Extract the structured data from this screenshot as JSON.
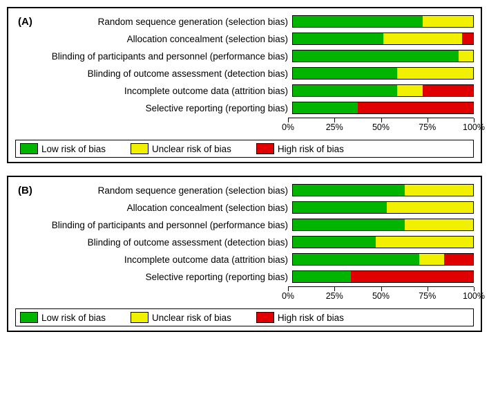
{
  "colors": {
    "low": "#00b400",
    "unclear": "#f0f000",
    "high": "#e00000",
    "border": "#000000",
    "background": "#ffffff"
  },
  "axis": {
    "ticks": [
      0,
      25,
      50,
      75,
      100
    ],
    "labels": [
      "0%",
      "25%",
      "50%",
      "75%",
      "100%"
    ]
  },
  "legend": {
    "low": "Low risk of bias",
    "unclear": "Unclear risk of bias",
    "high": "High risk of bias"
  },
  "panels": [
    {
      "id": "A",
      "label": "(A)",
      "rows": [
        {
          "label": "Random sequence generation (selection bias)",
          "low": 72,
          "unclear": 28,
          "high": 0
        },
        {
          "label": "Allocation concealment (selection bias)",
          "low": 50,
          "unclear": 44,
          "high": 6
        },
        {
          "label": "Blinding of participants and personnel (performance bias)",
          "low": 92,
          "unclear": 8,
          "high": 0
        },
        {
          "label": "Blinding of outcome assessment (detection bias)",
          "low": 58,
          "unclear": 42,
          "high": 0
        },
        {
          "label": "Incomplete outcome data (attrition bias)",
          "low": 58,
          "unclear": 14,
          "high": 28
        },
        {
          "label": "Selective reporting (reporting bias)",
          "low": 36,
          "unclear": 0,
          "high": 64
        }
      ]
    },
    {
      "id": "B",
      "label": "(B)",
      "rows": [
        {
          "label": "Random sequence generation (selection bias)",
          "low": 62,
          "unclear": 38,
          "high": 0
        },
        {
          "label": "Allocation concealment (selection bias)",
          "low": 52,
          "unclear": 48,
          "high": 0
        },
        {
          "label": "Blinding of participants and personnel (performance bias)",
          "low": 62,
          "unclear": 38,
          "high": 0
        },
        {
          "label": "Blinding of outcome assessment (detection bias)",
          "low": 46,
          "unclear": 54,
          "high": 0
        },
        {
          "label": "Incomplete outcome data (attrition bias)",
          "low": 70,
          "unclear": 14,
          "high": 16
        },
        {
          "label": "Selective reporting (reporting bias)",
          "low": 32,
          "unclear": 0,
          "high": 68
        }
      ]
    }
  ]
}
